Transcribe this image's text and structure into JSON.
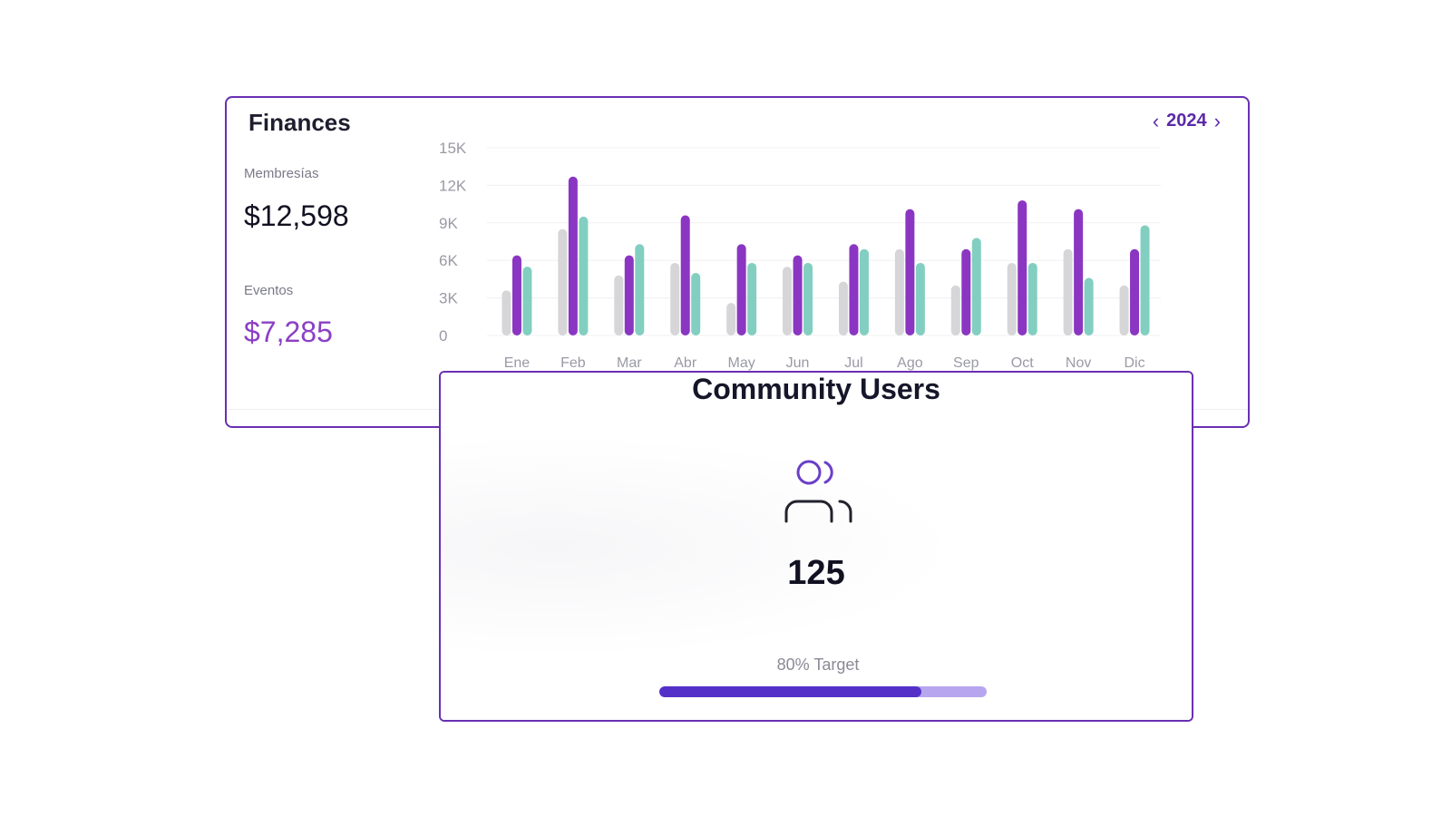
{
  "finances": {
    "title": "Finances",
    "year": "2024",
    "memberships": {
      "label": "Membresías",
      "value": "$12,598"
    },
    "events": {
      "label": "Eventos",
      "value": "$7,285"
    }
  },
  "colors": {
    "accent": "#6a2fb3",
    "series_gray": "#d6d6d9",
    "series_purple": "#8a36c2",
    "series_teal": "#82cfc1"
  },
  "chart_data": {
    "type": "bar",
    "categories": [
      "Ene",
      "Feb",
      "Mar",
      "Abr",
      "May",
      "Jun",
      "Jul",
      "Ago",
      "Sep",
      "Oct",
      "Nov",
      "Dic"
    ],
    "series": [
      {
        "values": [
          3.6,
          8.5,
          4.8,
          5.8,
          2.6,
          5.5,
          4.3,
          6.9,
          4.0,
          5.8,
          6.9,
          4.0
        ]
      },
      {
        "values": [
          6.4,
          12.7,
          6.4,
          9.6,
          7.3,
          6.4,
          7.3,
          10.1,
          6.9,
          10.8,
          10.1,
          6.9
        ]
      },
      {
        "values": [
          5.5,
          9.5,
          7.3,
          5.0,
          5.8,
          5.8,
          6.9,
          5.8,
          7.8,
          5.8,
          4.6,
          8.8
        ]
      }
    ],
    "y_ticks": [
      "0",
      "3K",
      "6K",
      "9K",
      "12K",
      "15K"
    ],
    "ylim": [
      0,
      15
    ],
    "grid": true,
    "legend": "none"
  },
  "community": {
    "title": "Community Users",
    "count": "125",
    "target_label": "80% Target",
    "progress_fraction": 0.8
  }
}
